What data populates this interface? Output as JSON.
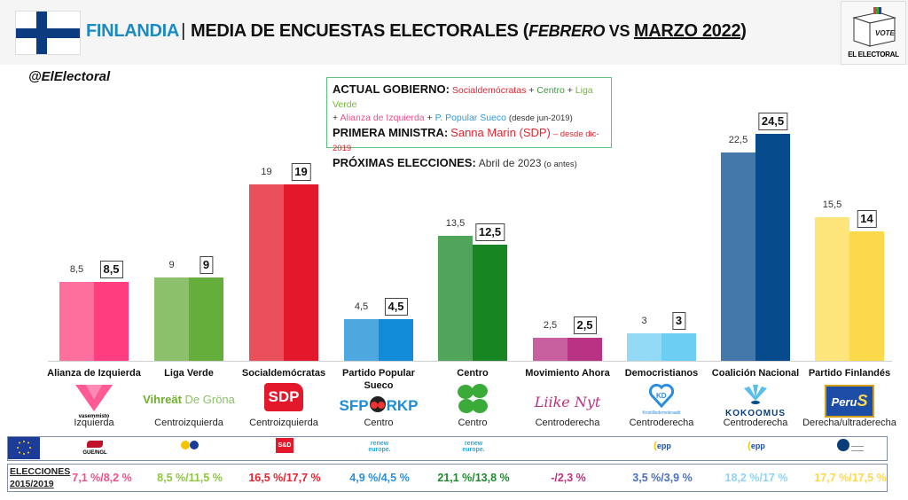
{
  "header": {
    "country": "FINLANDIA",
    "separator": "|",
    "title_main": "MEDIA DE ENCUESTAS ELECTORALES",
    "title_open": " (",
    "title_prev": "FEBRERO",
    "title_vs": " VS ",
    "title_curr": "MARZO 2022",
    "title_close": ")",
    "logo_vote": "VOTE",
    "logo_text": "EL ELECTORAL"
  },
  "handle": "@ElElectoral",
  "infobox": {
    "gov_label": "ACTUAL GOBIERNO:",
    "gov_parties": [
      "Socialdemócratas",
      "Centro",
      "Liga Verde",
      "Alianza de Izquierda",
      "P. Popular Sueco"
    ],
    "gov_joiner": " + ",
    "gov_since": "(desde jun-2019)",
    "pm_label": "PRIMERA MINISTRA:",
    "pm_name": "Sanna Marin (SDP)",
    "pm_since": "– desde dic-2019",
    "next_label": "PRÓXIMAS ELECCIONES:",
    "next_value": "Abril de 2023",
    "next_note": "(o antes)"
  },
  "chart_data": {
    "type": "bar",
    "title": "FINLANDIA | MEDIA DE ENCUESTAS ELECTORALES (FEBRERO VS MARZO 2022)",
    "xlabel": "",
    "ylabel": "",
    "ylim": [
      0,
      26
    ],
    "grid": false,
    "categories": [
      "Alianza de Izquierda",
      "Liga Verde",
      "Socialdemócratas",
      "Partido Popular Sueco",
      "Centro",
      "Movimiento Ahora",
      "Democristianos",
      "Coalición Nacional",
      "Partido Finlandés"
    ],
    "series": [
      {
        "name": "Febrero 2022",
        "values": [
          8.5,
          9,
          19,
          4.5,
          13.5,
          2.5,
          3,
          22.5,
          15.5
        ]
      },
      {
        "name": "Marzo 2022",
        "values": [
          8.5,
          9,
          19,
          4.5,
          12.5,
          2.5,
          3,
          24.5,
          14
        ]
      }
    ],
    "labels_prev": [
      "8,5",
      "9",
      "19",
      "4,5",
      "13,5",
      "2,5",
      "3",
      "22,5",
      "15,5"
    ],
    "labels_curr": [
      "8,5",
      "9",
      "19",
      "4,5",
      "12,5",
      "2,5",
      "3",
      "24,5",
      "14"
    ],
    "colors_prev": [
      "#ff6f9e",
      "#8dc06a",
      "#ea505c",
      "#4ea8e0",
      "#50a55a",
      "#c8609f",
      "#93daf6",
      "#4477aa",
      "#fde47b"
    ],
    "colors_curr": [
      "#ff3d7f",
      "#65ae3c",
      "#e3182b",
      "#128bd8",
      "#178522",
      "#b93283",
      "#6dcef4",
      "#064b8c",
      "#fcd94b"
    ]
  },
  "parties": [
    {
      "name": "Alianza de Izquierda",
      "logo": "V",
      "logo_sub": "vasemmisto",
      "ideology": "Izquierda",
      "eu_group": "GUE/NGL",
      "elections": "7,1 %/8,2 %",
      "color": "#f0508a"
    },
    {
      "name": "Liga Verde",
      "logo": "Vihreät De Gröna",
      "logo_a": "Vihreät",
      "logo_b": " De Gröna",
      "ideology": "Centroizquierda",
      "eu_group": "Greens/EFA",
      "elections": "8,5 %/11,5 %",
      "color": "#8cc63e"
    },
    {
      "name": "Socialdemócratas",
      "logo": "SDP",
      "ideology": "Centroizquierda",
      "eu_group": "S&D",
      "elections": "16,5 %/17,7 %",
      "color": "#e8222e"
    },
    {
      "name": "Partido Popular Sueco",
      "logo_a": "SFP",
      "logo_b": "RKP",
      "ideology": "Centro",
      "eu_group": "renew europe.",
      "elections": "4,9 %/4,5 %",
      "color": "#2e8fd8"
    },
    {
      "name": "Centro",
      "logo": "clover",
      "ideology": "Centro",
      "eu_group": "renew europe.",
      "elections": "21,1 %/13,8 %",
      "color": "#1e8a2e"
    },
    {
      "name": "Movimiento Ahora",
      "logo": "Liike Nyt",
      "ideology": "Centroderecha",
      "eu_group": "",
      "elections": "-/2,3 %",
      "color": "#b93283"
    },
    {
      "name": "Democristianos",
      "logo": "KD",
      "logo_sub": "Kristillisdemokraatit",
      "ideology": "Centroderecha",
      "eu_group": "epp",
      "elections": "3,5 %/3,9 %",
      "color": "#4a70c0"
    },
    {
      "name": "Coalición Nacional",
      "logo": "KOKOOMUS",
      "ideology": "Centroderecha",
      "eu_group": "epp",
      "elections": "18,2 %/17 %",
      "color": "#8fd3f5"
    },
    {
      "name": "Partido Finlandés",
      "logo": "PerusS",
      "ideology": "Derecha/ultraderecha",
      "eu_group": "ID",
      "elections": "17,7 %/17,5 %",
      "color": "#fcd94b"
    }
  ],
  "elections_label_1": "ELECCIONES",
  "elections_label_2": "2015/2019"
}
